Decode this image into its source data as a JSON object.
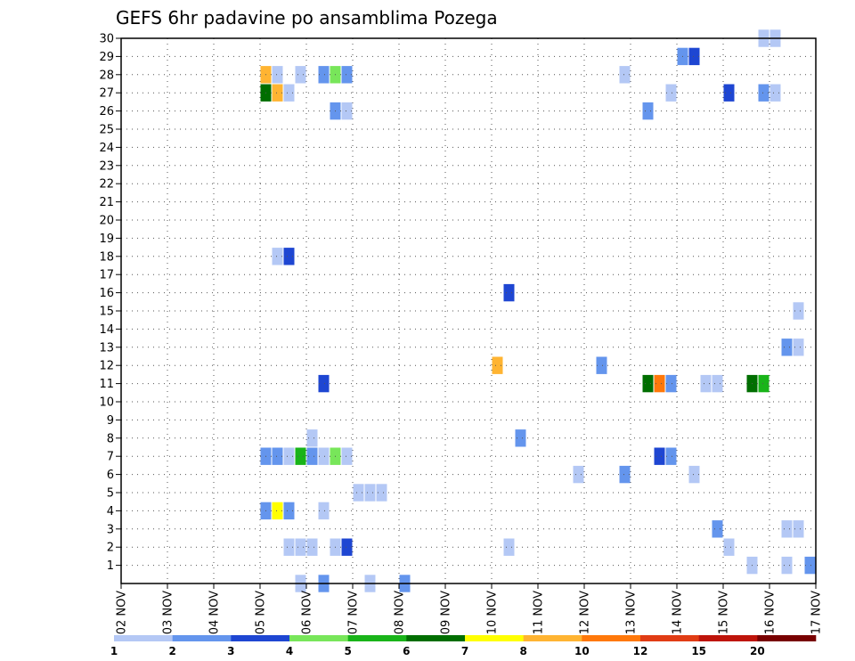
{
  "chart_data": {
    "type": "heatmap",
    "title": "GEFS 6hr padavine po ansamblima Pozega",
    "xlabel": "",
    "ylabel": "",
    "x_ticks": [
      "02 NOV",
      "03 NOV",
      "04 NOV",
      "05 NOV",
      "06 NOV",
      "07 NOV",
      "08 NOV",
      "09 NOV",
      "10 NOV",
      "11 NOV",
      "12 NOV",
      "13 NOV",
      "14 NOV",
      "15 NOV",
      "16 NOV",
      "17 NOV"
    ],
    "y_ticks": [
      1,
      2,
      3,
      4,
      5,
      6,
      7,
      8,
      9,
      10,
      11,
      12,
      13,
      14,
      15,
      16,
      17,
      18,
      19,
      20,
      21,
      22,
      23,
      24,
      25,
      26,
      27,
      28,
      29,
      30
    ],
    "xlim": [
      0,
      60
    ],
    "ylim": [
      0,
      30
    ],
    "grid": true,
    "legend": {
      "placement": "bottom",
      "bounds": [
        "1",
        "2",
        "3",
        "4",
        "5",
        "6",
        "7",
        "8",
        "10",
        "12",
        "15",
        "20"
      ],
      "colors": [
        "#b4c8f5",
        "#6495ed",
        "#1e46d2",
        "#78e65a",
        "#19b419",
        "#006e00",
        "#ffff00",
        "#ffb432",
        "#ff780a",
        "#e13c14",
        "#be140a",
        "#780000"
      ]
    },
    "cells": [
      {
        "t": 12,
        "m": 28,
        "c": 7
      },
      {
        "t": 13,
        "m": 28,
        "c": 0
      },
      {
        "t": 15,
        "m": 28,
        "c": 0
      },
      {
        "t": 17,
        "m": 28,
        "c": 1
      },
      {
        "t": 18,
        "m": 28,
        "c": 3
      },
      {
        "t": 19,
        "m": 28,
        "c": 1
      },
      {
        "t": 43,
        "m": 28,
        "c": 0
      },
      {
        "t": 12,
        "m": 27,
        "c": 5
      },
      {
        "t": 13,
        "m": 27,
        "c": 7
      },
      {
        "t": 14,
        "m": 27,
        "c": 0
      },
      {
        "t": 47,
        "m": 27,
        "c": 0
      },
      {
        "t": 52,
        "m": 27,
        "c": 2
      },
      {
        "t": 55,
        "m": 27,
        "c": 1
      },
      {
        "t": 56,
        "m": 27,
        "c": 0
      },
      {
        "t": 18,
        "m": 26,
        "c": 1
      },
      {
        "t": 19,
        "m": 26,
        "c": 0
      },
      {
        "t": 45,
        "m": 26,
        "c": 1
      },
      {
        "t": 48,
        "m": 29,
        "c": 1
      },
      {
        "t": 49,
        "m": 29,
        "c": 2
      },
      {
        "t": 55,
        "m": 30,
        "c": 0
      },
      {
        "t": 56,
        "m": 30,
        "c": 0
      },
      {
        "t": 13,
        "m": 18,
        "c": 0
      },
      {
        "t": 14,
        "m": 18,
        "c": 2
      },
      {
        "t": 33,
        "m": 16,
        "c": 2
      },
      {
        "t": 58,
        "m": 15,
        "c": 0
      },
      {
        "t": 57,
        "m": 13,
        "c": 1
      },
      {
        "t": 58,
        "m": 13,
        "c": 0
      },
      {
        "t": 32,
        "m": 12,
        "c": 7
      },
      {
        "t": 41,
        "m": 12,
        "c": 1
      },
      {
        "t": 17,
        "m": 11,
        "c": 2
      },
      {
        "t": 45,
        "m": 11,
        "c": 5
      },
      {
        "t": 46,
        "m": 11,
        "c": 8
      },
      {
        "t": 47,
        "m": 11,
        "c": 1
      },
      {
        "t": 50,
        "m": 11,
        "c": 0
      },
      {
        "t": 51,
        "m": 11,
        "c": 0
      },
      {
        "t": 54,
        "m": 11,
        "c": 5
      },
      {
        "t": 55,
        "m": 11,
        "c": 4
      },
      {
        "t": 16,
        "m": 8,
        "c": 0
      },
      {
        "t": 34,
        "m": 8,
        "c": 1
      },
      {
        "t": 12,
        "m": 7,
        "c": 1
      },
      {
        "t": 13,
        "m": 7,
        "c": 1
      },
      {
        "t": 14,
        "m": 7,
        "c": 0
      },
      {
        "t": 15,
        "m": 7,
        "c": 4
      },
      {
        "t": 16,
        "m": 7,
        "c": 1
      },
      {
        "t": 17,
        "m": 7,
        "c": 0
      },
      {
        "t": 18,
        "m": 7,
        "c": 3
      },
      {
        "t": 19,
        "m": 7,
        "c": 0
      },
      {
        "t": 46,
        "m": 7,
        "c": 2
      },
      {
        "t": 47,
        "m": 7,
        "c": 1
      },
      {
        "t": 39,
        "m": 6,
        "c": 0
      },
      {
        "t": 43,
        "m": 6,
        "c": 1
      },
      {
        "t": 49,
        "m": 6,
        "c": 0
      },
      {
        "t": 20,
        "m": 5,
        "c": 0
      },
      {
        "t": 21,
        "m": 5,
        "c": 0
      },
      {
        "t": 22,
        "m": 5,
        "c": 0
      },
      {
        "t": 12,
        "m": 4,
        "c": 1
      },
      {
        "t": 13,
        "m": 4,
        "c": 6
      },
      {
        "t": 14,
        "m": 4,
        "c": 1
      },
      {
        "t": 17,
        "m": 4,
        "c": 0
      },
      {
        "t": 51,
        "m": 3,
        "c": 1
      },
      {
        "t": 57,
        "m": 3,
        "c": 0
      },
      {
        "t": 58,
        "m": 3,
        "c": 0
      },
      {
        "t": 14,
        "m": 2,
        "c": 0
      },
      {
        "t": 15,
        "m": 2,
        "c": 0
      },
      {
        "t": 16,
        "m": 2,
        "c": 0
      },
      {
        "t": 18,
        "m": 2,
        "c": 0
      },
      {
        "t": 19,
        "m": 2,
        "c": 2
      },
      {
        "t": 33,
        "m": 2,
        "c": 0
      },
      {
        "t": 52,
        "m": 2,
        "c": 0
      },
      {
        "t": 54,
        "m": 1,
        "c": 0
      },
      {
        "t": 57,
        "m": 1,
        "c": 0
      },
      {
        "t": 59,
        "m": 1,
        "c": 1
      },
      {
        "t": 15,
        "m": 0,
        "c": 0
      },
      {
        "t": 17,
        "m": 0,
        "c": 1
      },
      {
        "t": 21,
        "m": 0,
        "c": 0
      },
      {
        "t": 24,
        "m": 0,
        "c": 1
      }
    ]
  }
}
